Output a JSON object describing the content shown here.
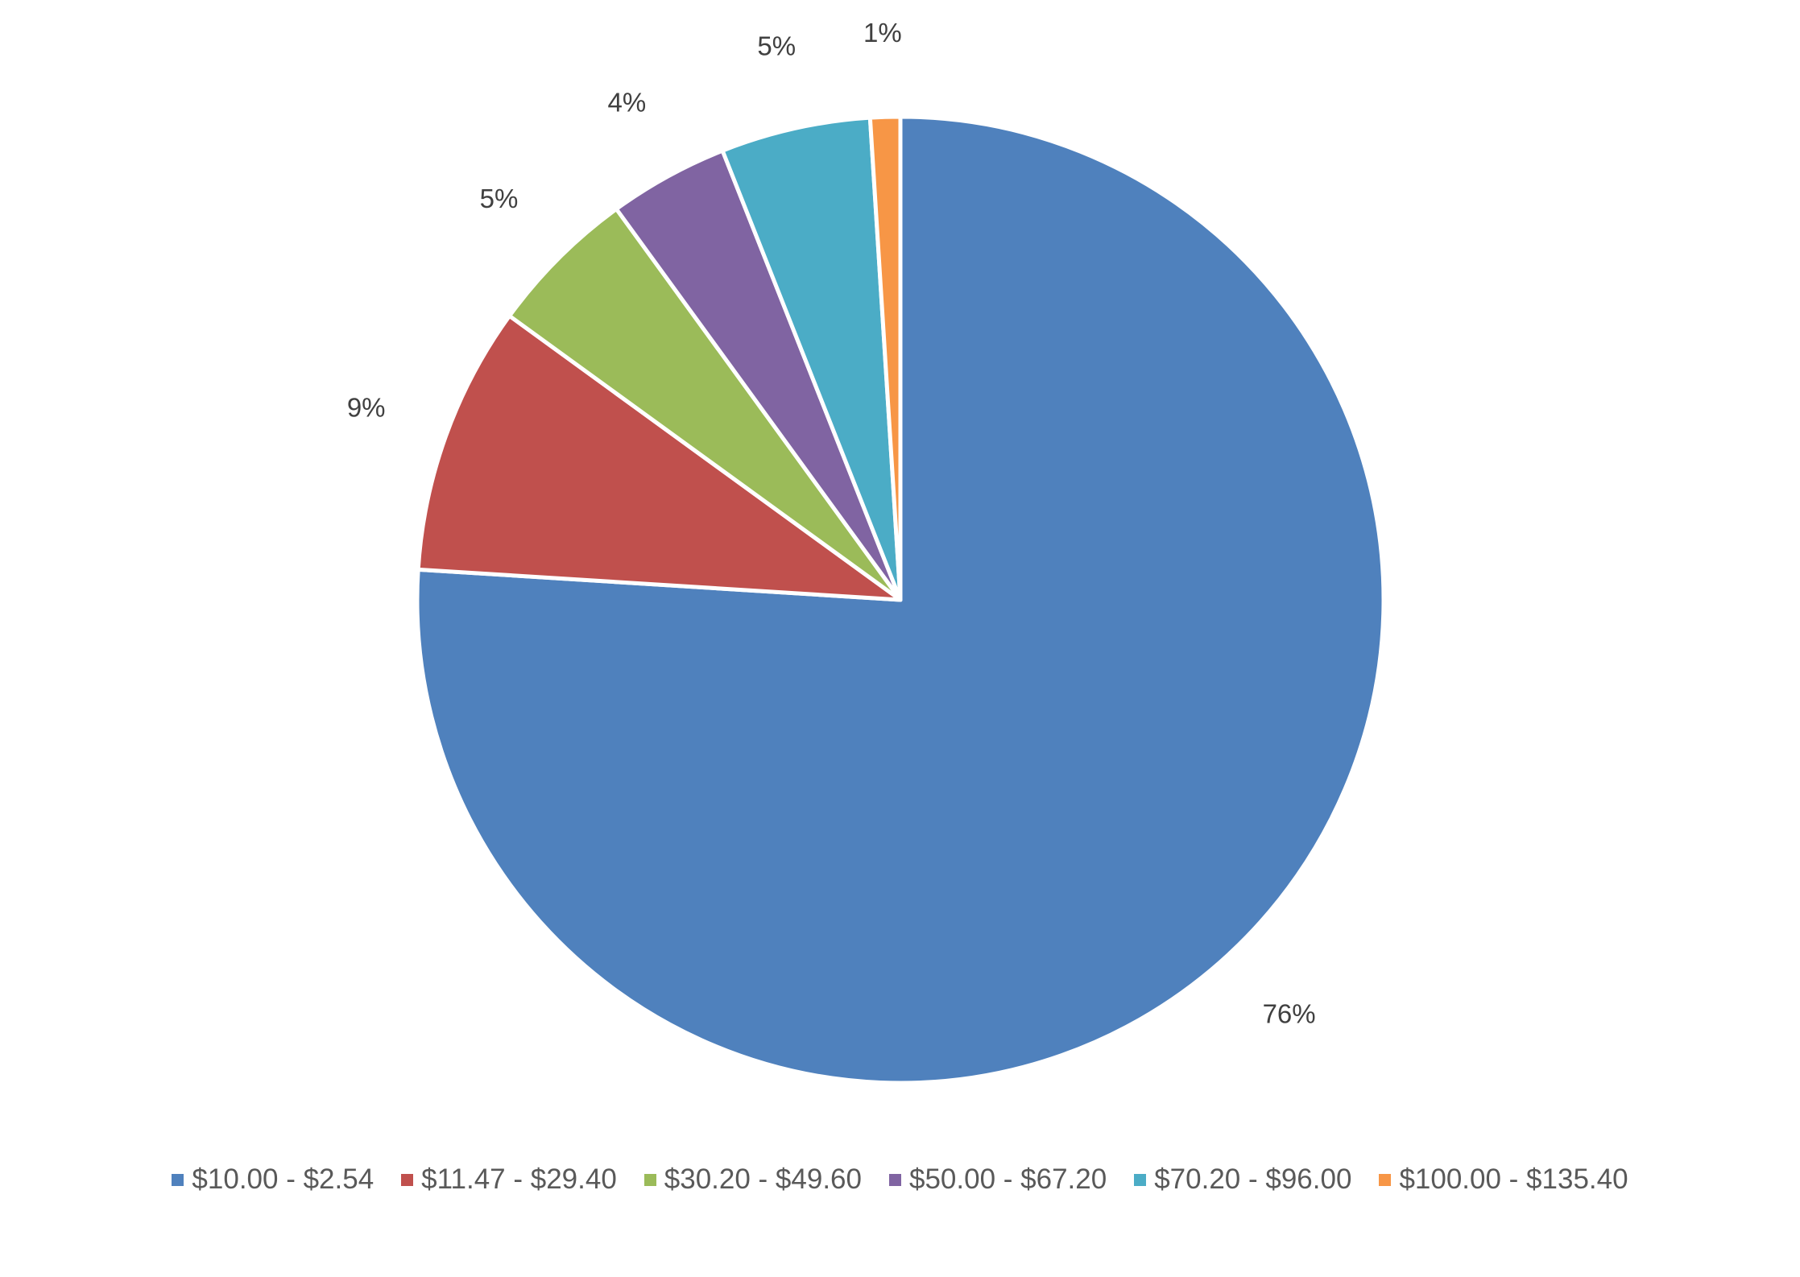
{
  "chart_data": {
    "type": "pie",
    "title": "",
    "start_angle_deg": 0,
    "direction": "clockwise",
    "legend_position": "bottom",
    "slices": [
      {
        "label": "$10.00 - $2.54",
        "value": 76,
        "value_label": "76%",
        "color": "#4F81BD"
      },
      {
        "label": "$11.47 - $29.40",
        "value": 9,
        "value_label": "9%",
        "color": "#C0504D"
      },
      {
        "label": "$30.20 - $49.60",
        "value": 5,
        "value_label": "5%",
        "color": "#9BBB59"
      },
      {
        "label": "$50.00 - $67.20",
        "value": 4,
        "value_label": "4%",
        "color": "#8064A2"
      },
      {
        "label": "$70.20 - $96.00",
        "value": 5,
        "value_label": "5%",
        "color": "#4BACC6"
      },
      {
        "label": "$100.00 - $135.40",
        "value": 1,
        "value_label": "1%",
        "color": "#F79646"
      }
    ]
  }
}
